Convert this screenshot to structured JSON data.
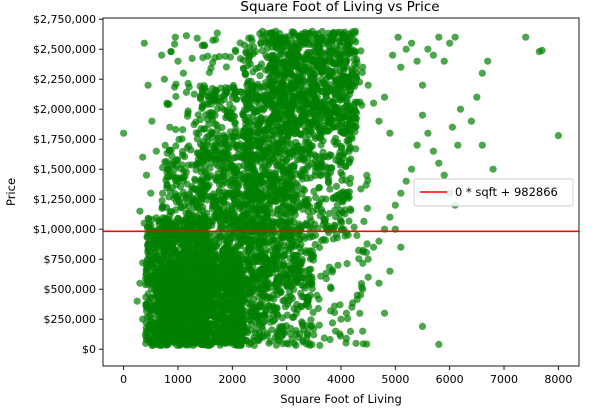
{
  "chart_data": {
    "type": "scatter",
    "title": "Square Foot of Living vs Price",
    "xlabel": "Square Foot of Living",
    "ylabel": "Price",
    "xlim": [
      -380,
      8380
    ],
    "ylim": [
      -140000,
      2760000
    ],
    "x_ticks": [
      0,
      1000,
      2000,
      3000,
      4000,
      5000,
      6000,
      7000,
      8000
    ],
    "x_tick_labels": [
      "0",
      "1000",
      "2000",
      "3000",
      "4000",
      "5000",
      "6000",
      "7000",
      "8000"
    ],
    "y_ticks": [
      0,
      250000,
      500000,
      750000,
      1000000,
      1250000,
      1500000,
      1750000,
      2000000,
      2250000,
      2500000,
      2750000
    ],
    "y_tick_labels": [
      "$0",
      "$250,000",
      "$500,000",
      "$750,000",
      "$1,000,000",
      "$1,250,000",
      "$1,500,000",
      "$1,750,000",
      "$2,000,000",
      "$2,250,000",
      "$2,500,000",
      "$2,750,000"
    ],
    "grid": false,
    "legend_position": "center-right",
    "series": [
      {
        "kind": "scatter",
        "color": "#008000",
        "alpha": 0.7,
        "points": [
          [
            0,
            1800000
          ],
          [
            380,
            2550000
          ],
          [
            450,
            2200000
          ],
          [
            520,
            1900000
          ],
          [
            600,
            1650000
          ],
          [
            350,
            1600000
          ],
          [
            420,
            1450000
          ],
          [
            500,
            1300000
          ],
          [
            300,
            1150000
          ],
          [
            380,
            1050000
          ],
          [
            450,
            880000
          ],
          [
            350,
            720000
          ],
          [
            300,
            550000
          ],
          [
            250,
            400000
          ],
          [
            350,
            250000
          ],
          [
            400,
            120000
          ],
          [
            500,
            60000
          ],
          [
            650,
            40000
          ],
          [
            700,
            2450000
          ],
          [
            750,
            2250000
          ],
          [
            800,
            2050000
          ],
          [
            850,
            1850000
          ],
          [
            950,
            2600000
          ],
          [
            1000,
            2400000
          ],
          [
            1100,
            2300000
          ],
          [
            4400,
            2350000
          ],
          [
            4500,
            2200000
          ],
          [
            4600,
            2050000
          ],
          [
            4700,
            1900000
          ],
          [
            4800,
            2100000
          ],
          [
            4900,
            1800000
          ],
          [
            4950,
            2450000
          ],
          [
            5050,
            2600000
          ],
          [
            5100,
            2350000
          ],
          [
            5200,
            2500000
          ],
          [
            5300,
            2550000
          ],
          [
            5400,
            2400000
          ],
          [
            5500,
            2200000
          ],
          [
            5600,
            2500000
          ],
          [
            5700,
            2450000
          ],
          [
            5800,
            2600000
          ],
          [
            5900,
            2400000
          ],
          [
            6000,
            2550000
          ],
          [
            6100,
            2600000
          ],
          [
            5500,
            1950000
          ],
          [
            5600,
            1800000
          ],
          [
            5700,
            1650000
          ],
          [
            5800,
            1550000
          ],
          [
            5900,
            1450000
          ],
          [
            6000,
            1300000
          ],
          [
            6100,
            1200000
          ],
          [
            6050,
            1850000
          ],
          [
            6150,
            1700000
          ],
          [
            6200,
            2000000
          ],
          [
            6400,
            1900000
          ],
          [
            6600,
            1700000
          ],
          [
            6800,
            1500000
          ],
          [
            6500,
            2100000
          ],
          [
            6700,
            2400000
          ],
          [
            6600,
            2300000
          ],
          [
            7400,
            2600000
          ],
          [
            7650,
            2480000
          ],
          [
            7700,
            2490000
          ],
          [
            8000,
            1780000
          ],
          [
            5400,
            1700000
          ],
          [
            5300,
            1500000
          ],
          [
            5200,
            1400000
          ],
          [
            5100,
            1300000
          ],
          [
            5000,
            1200000
          ],
          [
            4900,
            1100000
          ],
          [
            4800,
            1000000
          ],
          [
            4700,
            900000
          ],
          [
            4600,
            850000
          ],
          [
            4500,
            750000
          ],
          [
            5000,
            1000000
          ],
          [
            5100,
            850000
          ],
          [
            4900,
            650000
          ],
          [
            4700,
            550000
          ],
          [
            4500,
            600000
          ],
          [
            4400,
            500000
          ],
          [
            4300,
            450000
          ],
          [
            4200,
            350000
          ],
          [
            4100,
            300000
          ],
          [
            4000,
            250000
          ],
          [
            3900,
            150000
          ],
          [
            4400,
            150000
          ],
          [
            4100,
            90000
          ],
          [
            3800,
            80000
          ],
          [
            4800,
            300000
          ],
          [
            5500,
            190000
          ],
          [
            5800,
            40000
          ],
          [
            3500,
            120000
          ],
          [
            3600,
            200000
          ],
          [
            3300,
            60000
          ],
          [
            3000,
            50000
          ]
        ],
        "clusters": [
          {
            "x_range": [
              400,
              1600
            ],
            "y_range": [
              30000,
              1100000
            ],
            "count": 900
          },
          {
            "x_range": [
              600,
              2200
            ],
            "y_range": [
              30000,
              700000
            ],
            "count": 900
          },
          {
            "x_range": [
              700,
              2600
            ],
            "y_range": [
              200000,
              1700000
            ],
            "count": 700
          },
          {
            "x_range": [
              1400,
              3200
            ],
            "y_range": [
              500000,
              2200000
            ],
            "count": 700
          },
          {
            "x_range": [
              2200,
              4200
            ],
            "y_range": [
              900000,
              2650000
            ],
            "count": 800
          },
          {
            "x_range": [
              2700,
              4300
            ],
            "y_range": [
              1800000,
              2650000
            ],
            "count": 500
          },
          {
            "x_range": [
              1800,
              3500
            ],
            "y_range": [
              30000,
              900000
            ],
            "count": 400
          },
          {
            "x_range": [
              800,
              4500
            ],
            "y_range": [
              30000,
              2650000
            ],
            "count": 450
          }
        ]
      },
      {
        "kind": "line",
        "name": "0 * sqft + 982866",
        "color": "#ff0000",
        "slope": 0,
        "intercept": 982866
      }
    ]
  }
}
